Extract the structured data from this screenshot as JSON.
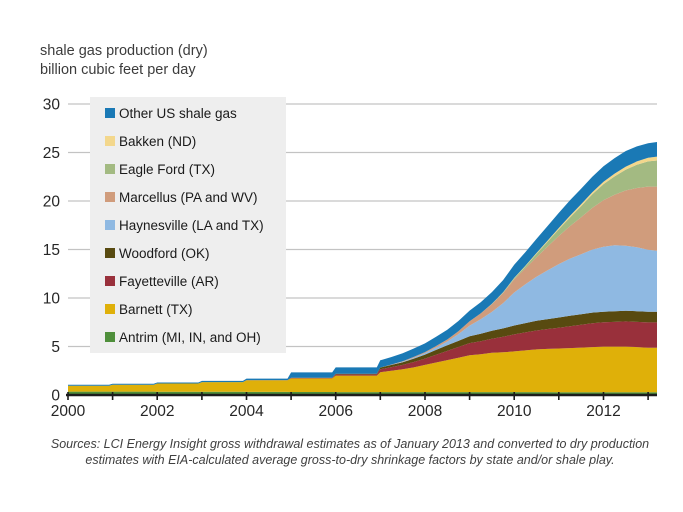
{
  "title": {
    "line1": "shale gas production (dry)",
    "line2": "billion cubic feet per day"
  },
  "source": {
    "line1": "Sources:  LCI Energy Insight gross withdrawal estimates as of January 2013 and converted to dry production",
    "line2": "estimates with EIA-calculated average gross-to-dry shrinkage factors by state and/or shale play."
  },
  "legend": {
    "items": [
      {
        "label": "Other US shale gas",
        "color": "#1a79b5"
      },
      {
        "label": "Bakken (ND)",
        "color": "#f3d78c"
      },
      {
        "label": "Eagle Ford (TX)",
        "color": "#a3ba82"
      },
      {
        "label": "Marcellus (PA and WV)",
        "color": "#d09c7c"
      },
      {
        "label": "Haynesville (LA and TX)",
        "color": "#8fb9e2"
      },
      {
        "label": "Woodford (OK)",
        "color": "#584a10"
      },
      {
        "label": "Fayetteville (AR)",
        "color": "#99303b"
      },
      {
        "label": "Barnett (TX)",
        "color": "#dfb009"
      },
      {
        "label": "Antrim (MI, IN, and OH)",
        "color": "#4f8f3b"
      }
    ]
  },
  "chart_data": {
    "type": "area",
    "stacked": true,
    "title": "shale gas production (dry)",
    "ylabel": "billion cubic feet per day",
    "xlabel": "",
    "grid": "horizontal",
    "legend_position": "upper-left-inside",
    "xlim": [
      2000,
      2013.2
    ],
    "ylim": [
      0,
      30
    ],
    "yticks": [
      0,
      5,
      10,
      15,
      20,
      25,
      30
    ],
    "ytick_labels": [
      "0",
      "5",
      "10",
      "15",
      "20",
      "25",
      "30"
    ],
    "xticks_labeled": [
      2000,
      2002,
      2004,
      2006,
      2008,
      2010,
      2012
    ],
    "xtick_labels": [
      "2000",
      "2002",
      "2004",
      "2006",
      "2008",
      "2010",
      "2012"
    ],
    "xticks_minor": [
      2000,
      2001,
      2002,
      2003,
      2004,
      2005,
      2006,
      2007,
      2008,
      2009,
      2010,
      2011,
      2012,
      2013
    ],
    "x": [
      2000,
      2000.92,
      2001,
      2001.92,
      2002,
      2002.92,
      2003,
      2003.92,
      2004,
      2004.92,
      2005,
      2005.92,
      2006,
      2006.92,
      2007,
      2007.25,
      2007.5,
      2007.75,
      2008,
      2008.25,
      2008.5,
      2008.75,
      2009,
      2009.25,
      2009.5,
      2009.75,
      2010,
      2010.25,
      2010.5,
      2010.75,
      2011,
      2011.25,
      2011.5,
      2011.75,
      2012,
      2012.25,
      2012.5,
      2012.75,
      2013,
      2013.2
    ],
    "units": "billion cubic feet per day",
    "series": [
      {
        "name": "Antrim (MI, IN, and OH)",
        "color": "#4f8f3b",
        "values": [
          0.35,
          0.35,
          0.35,
          0.35,
          0.34,
          0.34,
          0.33,
          0.33,
          0.32,
          0.32,
          0.31,
          0.31,
          0.3,
          0.3,
          0.3,
          0.3,
          0.3,
          0.3,
          0.3,
          0.3,
          0.3,
          0.3,
          0.3,
          0.3,
          0.3,
          0.3,
          0.3,
          0.3,
          0.3,
          0.3,
          0.29,
          0.29,
          0.29,
          0.29,
          0.29,
          0.29,
          0.29,
          0.29,
          0.28,
          0.28
        ]
      },
      {
        "name": "Barnett (TX)",
        "color": "#dfb009",
        "values": [
          0.6,
          0.6,
          0.7,
          0.7,
          0.85,
          0.85,
          1.0,
          1.0,
          1.2,
          1.2,
          1.4,
          1.4,
          1.7,
          1.7,
          2.05,
          2.2,
          2.35,
          2.55,
          2.8,
          3.05,
          3.3,
          3.55,
          3.8,
          3.9,
          4.05,
          4.1,
          4.2,
          4.3,
          4.4,
          4.45,
          4.5,
          4.55,
          4.6,
          4.65,
          4.7,
          4.7,
          4.7,
          4.65,
          4.6,
          4.6
        ]
      },
      {
        "name": "Fayetteville (AR)",
        "color": "#99303b",
        "values": [
          0,
          0,
          0,
          0,
          0,
          0,
          0,
          0,
          0.02,
          0.02,
          0.05,
          0.05,
          0.12,
          0.12,
          0.3,
          0.38,
          0.45,
          0.55,
          0.65,
          0.8,
          0.95,
          1.1,
          1.25,
          1.35,
          1.45,
          1.6,
          1.75,
          1.85,
          1.95,
          2.05,
          2.15,
          2.25,
          2.35,
          2.45,
          2.5,
          2.55,
          2.6,
          2.6,
          2.6,
          2.6
        ]
      },
      {
        "name": "Woodford (OK)",
        "color": "#584a10",
        "values": [
          0,
          0,
          0,
          0,
          0,
          0,
          0,
          0,
          0,
          0,
          0.02,
          0.02,
          0.08,
          0.08,
          0.18,
          0.22,
          0.28,
          0.35,
          0.42,
          0.5,
          0.57,
          0.63,
          0.7,
          0.76,
          0.82,
          0.87,
          0.92,
          0.96,
          1.0,
          1.02,
          1.05,
          1.07,
          1.08,
          1.1,
          1.1,
          1.1,
          1.1,
          1.1,
          1.1,
          1.1
        ]
      },
      {
        "name": "Haynesville (LA and TX)",
        "color": "#8fb9e2",
        "values": [
          0,
          0,
          0,
          0,
          0,
          0,
          0,
          0,
          0,
          0,
          0,
          0,
          0,
          0,
          0,
          0.02,
          0.05,
          0.1,
          0.15,
          0.25,
          0.4,
          0.7,
          1.1,
          1.5,
          1.95,
          2.6,
          3.4,
          4.0,
          4.55,
          5.05,
          5.5,
          5.9,
          6.2,
          6.5,
          6.7,
          6.8,
          6.7,
          6.6,
          6.4,
          6.3
        ]
      },
      {
        "name": "Marcellus (PA and WV)",
        "color": "#d09c7c",
        "values": [
          0,
          0,
          0,
          0,
          0,
          0,
          0,
          0,
          0,
          0,
          0,
          0,
          0,
          0,
          0,
          0.02,
          0.05,
          0.08,
          0.1,
          0.15,
          0.2,
          0.3,
          0.45,
          0.6,
          0.8,
          1.05,
          1.35,
          1.65,
          2.0,
          2.45,
          2.9,
          3.35,
          3.8,
          4.3,
          4.8,
          5.2,
          5.7,
          6.1,
          6.5,
          6.6
        ]
      },
      {
        "name": "Eagle Ford (TX)",
        "color": "#a3ba82",
        "values": [
          0,
          0,
          0,
          0,
          0,
          0,
          0,
          0,
          0,
          0,
          0,
          0,
          0,
          0,
          0,
          0,
          0,
          0,
          0,
          0,
          0,
          0,
          0,
          0,
          0.02,
          0.05,
          0.1,
          0.2,
          0.35,
          0.5,
          0.7,
          0.9,
          1.15,
          1.4,
          1.65,
          1.9,
          2.15,
          2.4,
          2.6,
          2.7
        ]
      },
      {
        "name": "Bakken (ND)",
        "color": "#f3d78c",
        "values": [
          0,
          0,
          0,
          0,
          0,
          0,
          0,
          0,
          0,
          0,
          0,
          0,
          0,
          0,
          0,
          0,
          0,
          0,
          0,
          0,
          0,
          0,
          0,
          0,
          0.02,
          0.03,
          0.05,
          0.07,
          0.09,
          0.11,
          0.13,
          0.16,
          0.19,
          0.22,
          0.25,
          0.28,
          0.31,
          0.34,
          0.38,
          0.4
        ]
      },
      {
        "name": "Other US shale gas",
        "color": "#1a79b5",
        "values": [
          0.1,
          0.1,
          0.1,
          0.1,
          0.1,
          0.1,
          0.12,
          0.12,
          0.15,
          0.15,
          0.55,
          0.55,
          0.65,
          0.65,
          0.75,
          0.78,
          0.82,
          0.86,
          0.9,
          0.95,
          1.0,
          1.05,
          1.1,
          1.15,
          1.2,
          1.25,
          1.35,
          1.4,
          1.45,
          1.5,
          1.55,
          1.6,
          1.6,
          1.6,
          1.6,
          1.6,
          1.6,
          1.55,
          1.5,
          1.5
        ]
      }
    ]
  },
  "style_colors": {
    "grid": "#c3c3c3",
    "axis": "#1c1c1c",
    "tick_label": "#262626",
    "legend_bg": "#eeeeee"
  }
}
